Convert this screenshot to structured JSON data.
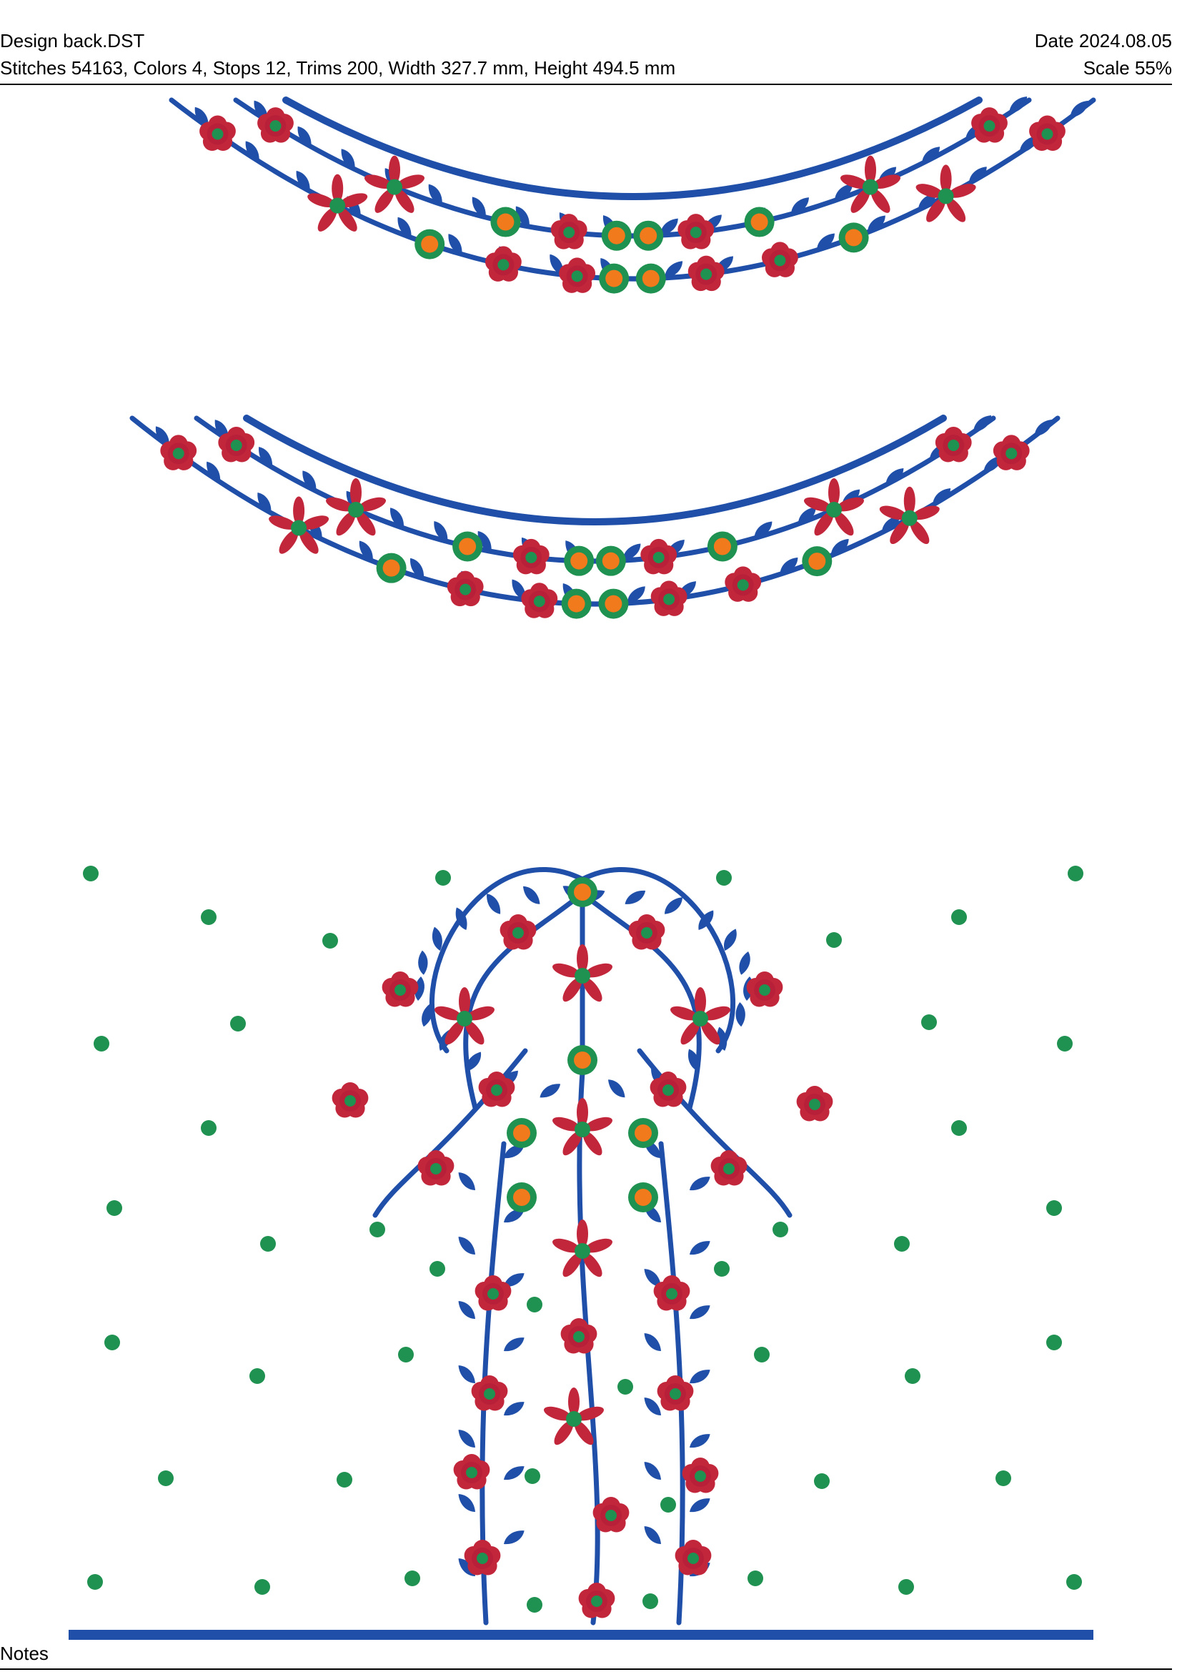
{
  "header": {
    "file_name": "Design back.DST",
    "stats": "Stitches 54163, Colors 4, Stops 12, Trims 200, Width 327.7 mm, Height 494.5 mm",
    "date": "Date 2024.08.05",
    "scale": "Scale 55%"
  },
  "footer": {
    "notes_label": "Notes"
  },
  "design": {
    "description_colors": {
      "blue": "#1f4fa8",
      "red": "#c2263b",
      "green": "#1f9150",
      "orange": "#f07a1c"
    }
  }
}
